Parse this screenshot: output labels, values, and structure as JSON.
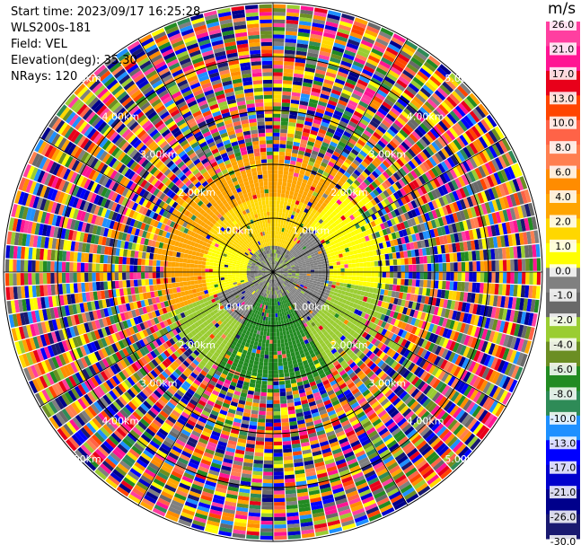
{
  "header": {
    "start_time": "Start time: 2023/09/17 16:25:28",
    "instrument": "WLS200s-181",
    "field": "Field: VEL",
    "elevation": "Elevation(deg): 35.30",
    "nrays": "NRays: 120"
  },
  "colorbar": {
    "unit": "m/s",
    "labels": [
      "26.0",
      "21.0",
      "17.0",
      "13.0",
      "10.0",
      "8.0",
      "6.0",
      "4.0",
      "2.0",
      "1.0",
      "0.0",
      "-1.0",
      "-2.0",
      "-4.0",
      "-6.0",
      "-8.0",
      "-10.0",
      "-13.0",
      "-17.0",
      "-21.0",
      "-26.0",
      "-30.0"
    ],
    "colors": [
      "#ff3fa0",
      "#ff1493",
      "#e8001a",
      "#ff4500",
      "#ff6347",
      "#ff7f50",
      "#ff8c00",
      "#ffa500",
      "#ffd700",
      "#ffff00",
      "#808080",
      "#696969",
      "#9acd32",
      "#6b8e23",
      "#228b22",
      "#2e8b57",
      "#1e90ff",
      "#0000ff",
      "#0000cd",
      "#00008b",
      "#191970"
    ]
  },
  "chart_data": {
    "type": "ppi",
    "field": "VEL",
    "units": "m/s",
    "range_rings_km": [
      1.0,
      2.0,
      3.0,
      4.0,
      5.0
    ],
    "ring_labels": [
      "1.00km",
      "2.00km",
      "3.00km",
      "4.00km",
      "5.00km"
    ],
    "n_rays": 120,
    "max_range_km": 5.0,
    "vmin": -30.0,
    "vmax": 30.0
  }
}
